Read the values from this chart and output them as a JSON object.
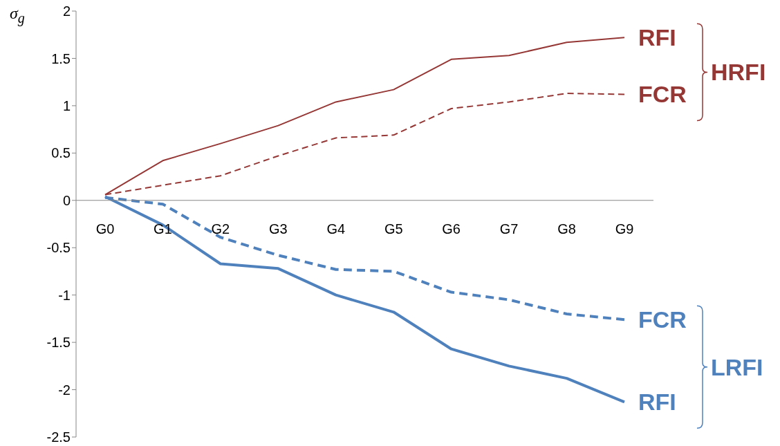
{
  "chart_data": {
    "type": "line",
    "ylabel": "σ$_{g}$",
    "categories": [
      "G0",
      "G1",
      "G2",
      "G3",
      "G4",
      "G5",
      "G6",
      "G7",
      "G8",
      "G9"
    ],
    "series": [
      {
        "name": "RFI",
        "color": "#953735",
        "line_style": "solid",
        "values": [
          0.06,
          0.42,
          0.6,
          0.79,
          1.04,
          1.17,
          1.49,
          1.53,
          1.67,
          1.72
        ]
      },
      {
        "name": "FCR",
        "color": "#953735",
        "line_style": "dashed",
        "values": [
          0.06,
          0.16,
          0.26,
          0.47,
          0.66,
          0.69,
          0.97,
          1.04,
          1.13,
          1.12
        ]
      },
      {
        "name": "FCR",
        "color": "#4f81bd",
        "line_style": "dashed",
        "values": [
          0.03,
          -0.04,
          -0.39,
          -0.58,
          -0.73,
          -0.75,
          -0.97,
          -1.05,
          -1.2,
          -1.26
        ]
      },
      {
        "name": "RFI",
        "color": "#4f81bd",
        "line_style": "solid",
        "values": [
          0.04,
          -0.26,
          -0.67,
          -0.72,
          -1.0,
          -1.18,
          -1.57,
          -1.75,
          -1.88,
          -2.13
        ]
      }
    ],
    "annotations": [
      "HRFI",
      "LRFI"
    ],
    "ylim": [
      -2.5,
      2
    ],
    "yticks": [
      -2.5,
      -2,
      -1.5,
      -1,
      -0.5,
      0,
      0.5,
      1,
      1.5,
      2
    ],
    "grid": false,
    "legend": false,
    "marker": "none"
  }
}
